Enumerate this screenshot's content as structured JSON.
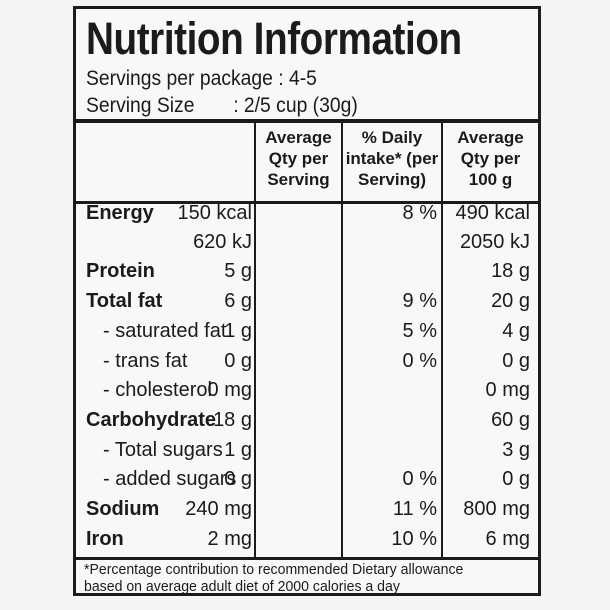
{
  "title": "Nutrition Information",
  "servings_per_package": "Servings per package : 4-5",
  "serving_size_label": "Serving Size",
  "serving_size_value": ": 2/5 cup (30g)",
  "headers": {
    "per_serving": "Average\nQty per\nServing",
    "daily_intake": "% Daily\nintake* (per\nServing)",
    "per_100g": "Average\nQty per\n100 g"
  },
  "rows": [
    {
      "label": "Energy",
      "per_serving": "150 kcal",
      "daily": "8 %",
      "per_100g": "490 kcal"
    },
    {
      "label": "",
      "per_serving": "620 kJ",
      "daily": "",
      "per_100g": "2050 kJ"
    },
    {
      "label": "Protein",
      "per_serving": "5 g",
      "daily": "",
      "per_100g": "18 g"
    },
    {
      "label": "Total fat",
      "per_serving": "6 g",
      "daily": "9 %",
      "per_100g": "20 g"
    },
    {
      "label": "- saturated fat",
      "per_serving": "1 g",
      "daily": "5 %",
      "per_100g": "4 g"
    },
    {
      "label": "- trans fat",
      "per_serving": "0 g",
      "daily": "0 %",
      "per_100g": "0 g"
    },
    {
      "label": "- cholesterol",
      "per_serving": "0 mg",
      "daily": "",
      "per_100g": "0 mg"
    },
    {
      "label": "Carbohydrate",
      "per_serving": "18 g",
      "daily": "",
      "per_100g": "60 g"
    },
    {
      "label": "- Total sugars",
      "per_serving": "1 g",
      "daily": "",
      "per_100g": "3 g"
    },
    {
      "label": "- added sugars",
      "per_serving": "0 g",
      "daily": "0 %",
      "per_100g": "0 g"
    },
    {
      "label": "Sodium",
      "per_serving": "240 mg",
      "daily": "11 %",
      "per_100g": "800 mg"
    },
    {
      "label": "Iron",
      "per_serving": "2 mg",
      "daily": "10 %",
      "per_100g": "6 mg"
    }
  ],
  "footnote_line1": "*Percentage contribution to recommended Dietary allowance",
  "footnote_line2": "based on average adult diet of 2000 calories a day"
}
